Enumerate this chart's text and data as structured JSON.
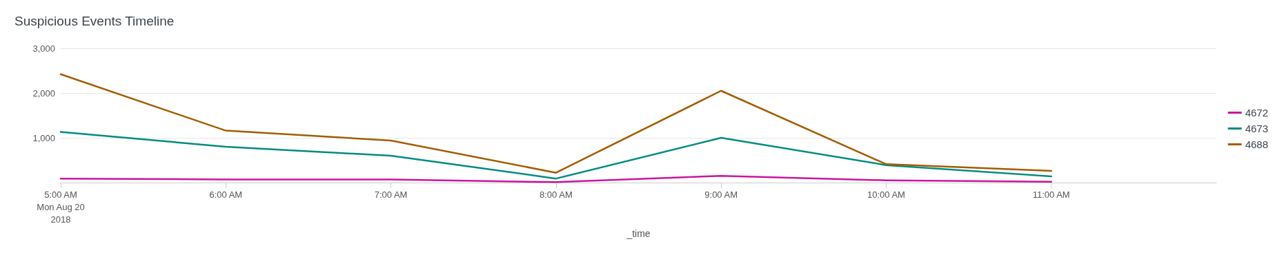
{
  "chart_data": {
    "type": "line",
    "title": "Suspicious Events Timeline",
    "xlabel": "_time",
    "x": [
      5,
      6,
      7,
      8,
      9,
      10,
      11
    ],
    "series": [
      {
        "name": "4672",
        "color": "#c9169e",
        "values": [
          90,
          70,
          70,
          10,
          150,
          50,
          20
        ]
      },
      {
        "name": "4673",
        "color": "#008c80",
        "values": [
          1130,
          800,
          600,
          90,
          1000,
          390,
          140
        ]
      },
      {
        "name": "4688",
        "color": "#a35c00",
        "values": [
          2420,
          1160,
          940,
          220,
          2050,
          410,
          260
        ]
      }
    ],
    "xlim": [
      5,
      12
    ],
    "xticks": [
      {
        "value": 5,
        "label": "5:00 AM\nMon Aug 20\n2018"
      },
      {
        "value": 6,
        "label": "6:00 AM"
      },
      {
        "value": 7,
        "label": "7:00 AM"
      },
      {
        "value": 8,
        "label": "8:00 AM"
      },
      {
        "value": 9,
        "label": "9:00 AM"
      },
      {
        "value": 10,
        "label": "10:00 AM"
      },
      {
        "value": 11,
        "label": "11:00 AM"
      }
    ],
    "ylim": [
      0,
      3000
    ],
    "yticks": [
      {
        "value": 0,
        "label": null
      },
      {
        "value": 1000,
        "label": "1,000"
      },
      {
        "value": 2000,
        "label": "2,000"
      },
      {
        "value": 3000,
        "label": "3,000"
      }
    ],
    "grid": "y",
    "legend": "right",
    "marker": "none",
    "line_style": "solid"
  }
}
